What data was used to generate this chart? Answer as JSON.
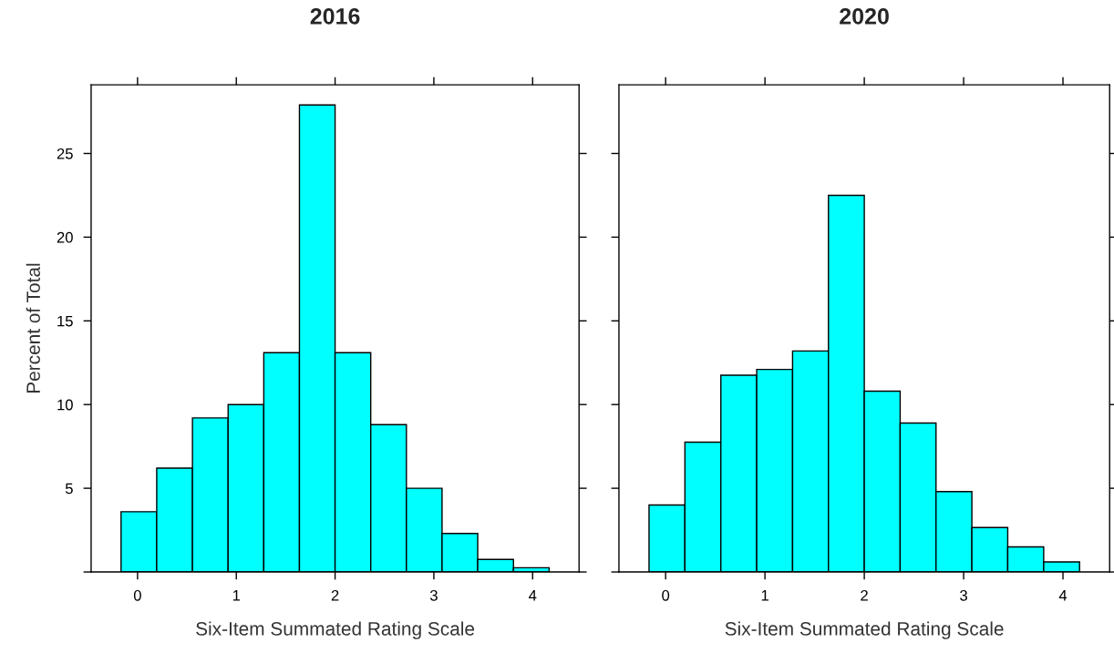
{
  "chart_data": [
    {
      "type": "histogram",
      "title": "2016",
      "xlabel": "Six-Item Summated Rating Scale",
      "ylabel": "Percent of Total",
      "color": "#00ffff",
      "bins": [
        -0.167,
        0.194,
        0.556,
        0.917,
        1.278,
        1.639,
        2.0,
        2.361,
        2.722,
        3.083,
        3.444,
        3.806,
        4.167
      ],
      "values": [
        3.6,
        6.2,
        9.2,
        10.0,
        13.1,
        27.9,
        13.1,
        8.8,
        5.0,
        2.3,
        0.75,
        0.25
      ],
      "xlim": [
        -0.47,
        4.47
      ],
      "ylim": [
        0,
        29.1
      ],
      "xticks": [
        0,
        1,
        2,
        3,
        4
      ],
      "yticks": [
        {
          "value": 0,
          "label": null
        },
        5,
        10,
        15,
        20,
        25
      ],
      "grid": false
    },
    {
      "type": "histogram",
      "title": "2020",
      "xlabel": "Six-Item Summated Rating Scale",
      "color": "#00ffff",
      "bins": [
        -0.167,
        0.194,
        0.556,
        0.917,
        1.278,
        1.639,
        2.0,
        2.361,
        2.722,
        3.083,
        3.444,
        3.806,
        4.167
      ],
      "values": [
        4.0,
        7.75,
        11.75,
        12.1,
        13.2,
        22.5,
        10.8,
        8.9,
        4.8,
        2.65,
        1.5,
        0.6
      ],
      "xlim": [
        -0.47,
        4.47
      ],
      "ylim": [
        0,
        29.1
      ],
      "xticks": [
        0,
        1,
        2,
        3,
        4
      ],
      "yticks": [
        {
          "value": 0,
          "label": null
        },
        5,
        10,
        15,
        20,
        25
      ],
      "grid": false,
      "tick_labels": "x"
    }
  ]
}
